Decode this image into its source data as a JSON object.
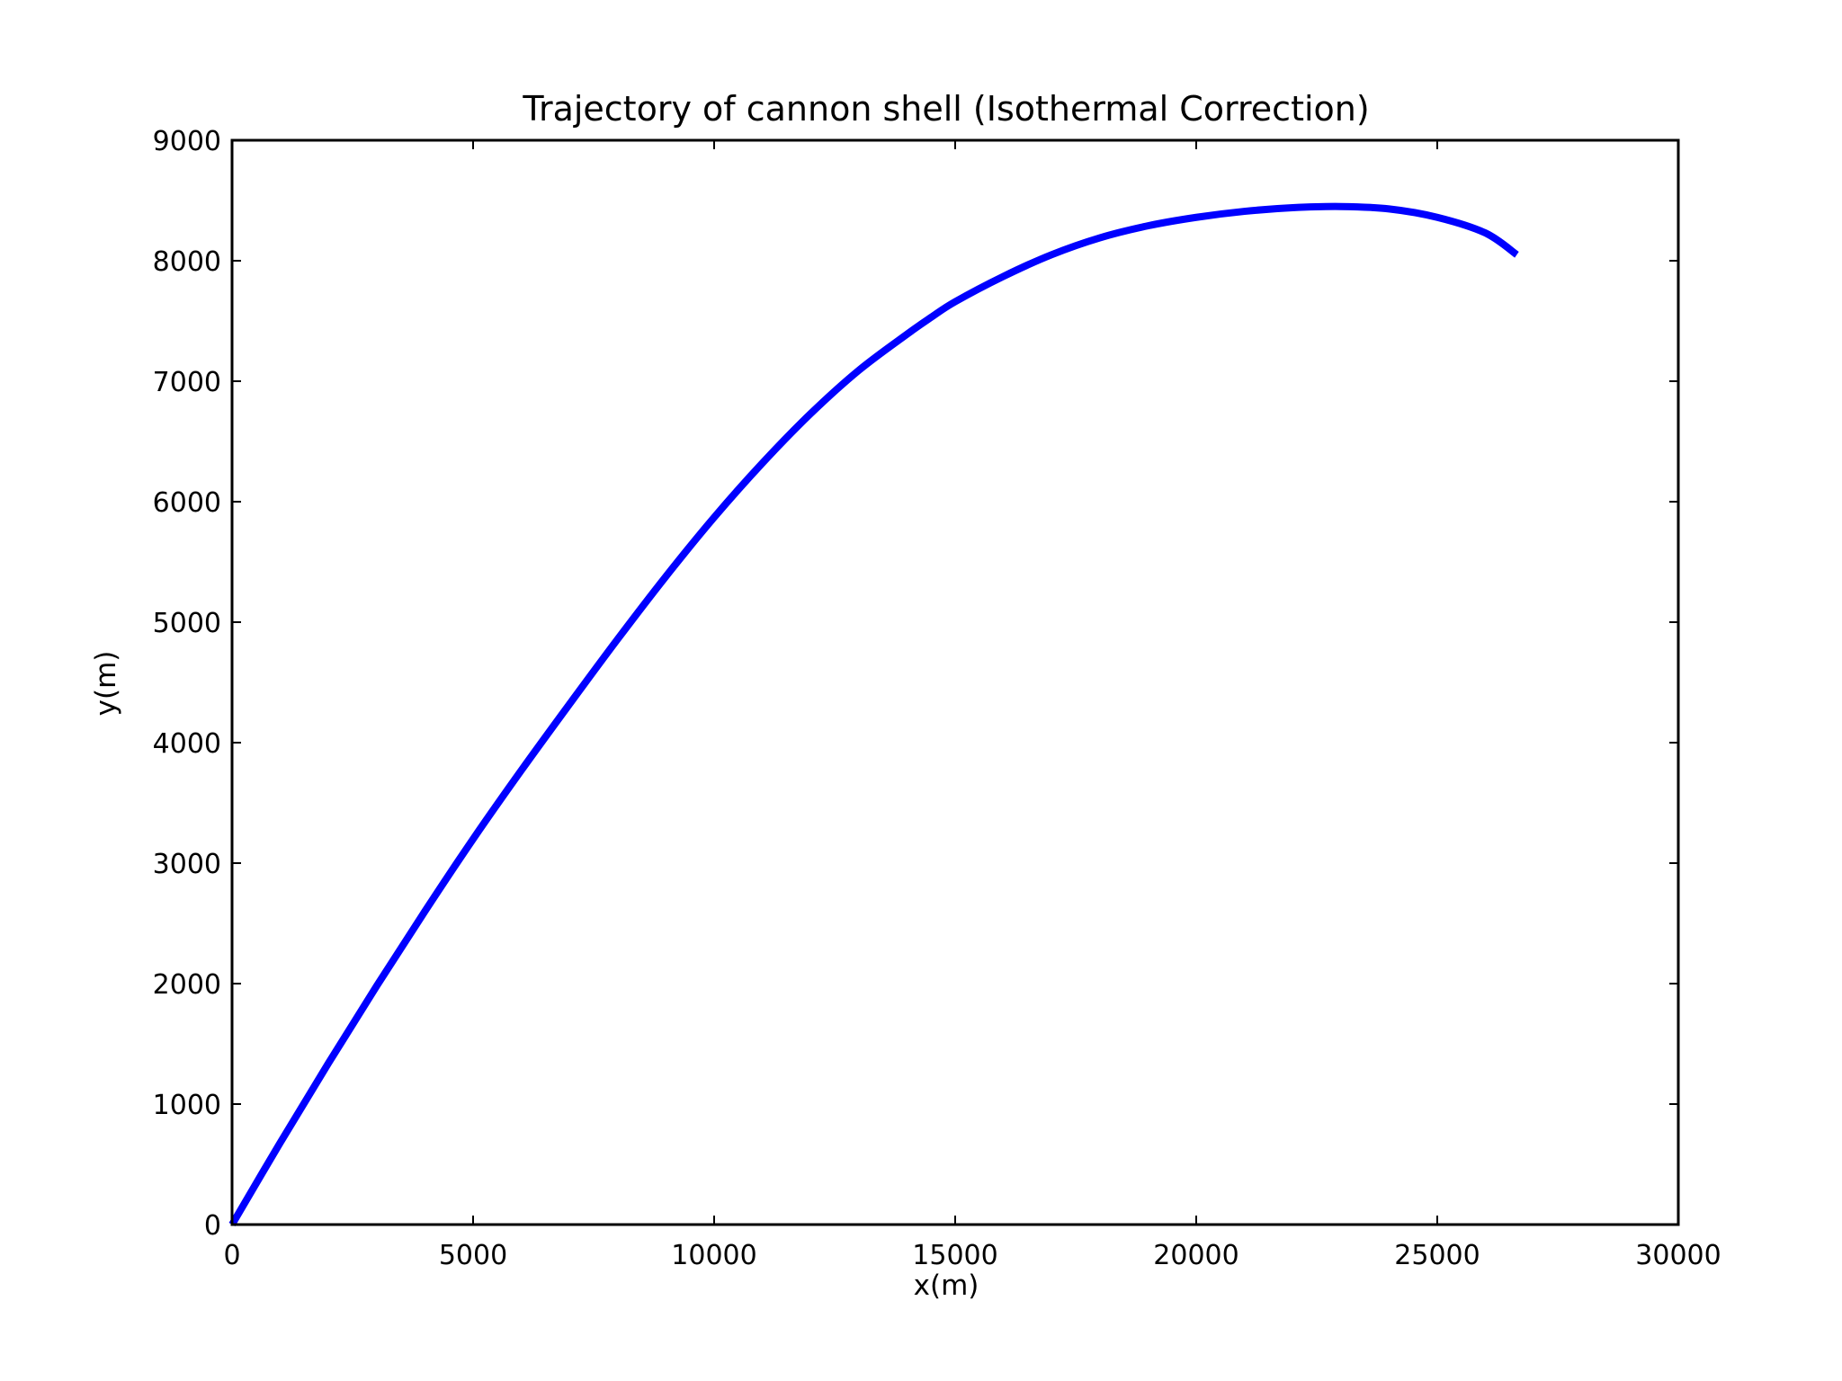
{
  "chart_data": {
    "type": "line",
    "title": "Trajectory of cannon shell (Isothermal Correction)",
    "xlabel": "x(m)",
    "ylabel": "y(m)",
    "xlim": [
      0,
      30000
    ],
    "ylim": [
      0,
      9000
    ],
    "x_ticks": [
      0,
      5000,
      10000,
      15000,
      20000,
      25000,
      30000
    ],
    "y_ticks": [
      0,
      1000,
      2000,
      3000,
      4000,
      5000,
      6000,
      7000,
      8000,
      9000
    ],
    "x_tick_labels": [
      "0",
      "5000",
      "10000",
      "15000",
      "20000",
      "25000",
      "30000"
    ],
    "y_tick_labels": [
      "0",
      "1000",
      "2000",
      "3000",
      "4000",
      "5000",
      "6000",
      "7000",
      "8000",
      "9000"
    ],
    "grid": false,
    "legend": "none",
    "series": [
      {
        "color": "#0000ff",
        "x": [
          0,
          1000,
          2000,
          3000,
          4000,
          5000,
          6000,
          7000,
          8000,
          9000,
          10000,
          11000,
          12000,
          13000,
          14000,
          14500,
          15000,
          16000,
          17000,
          18000,
          19000,
          20000,
          21000,
          22000,
          23000,
          24000,
          25000,
          26000,
          26650
        ],
        "y": [
          0,
          680,
          1340,
          1980,
          2600,
          3200,
          3770,
          4320,
          4860,
          5380,
          5870,
          6320,
          6730,
          7090,
          7390,
          7530,
          7660,
          7870,
          8050,
          8190,
          8290,
          8360,
          8410,
          8440,
          8450,
          8430,
          8360,
          8230,
          8050
        ]
      }
    ]
  }
}
